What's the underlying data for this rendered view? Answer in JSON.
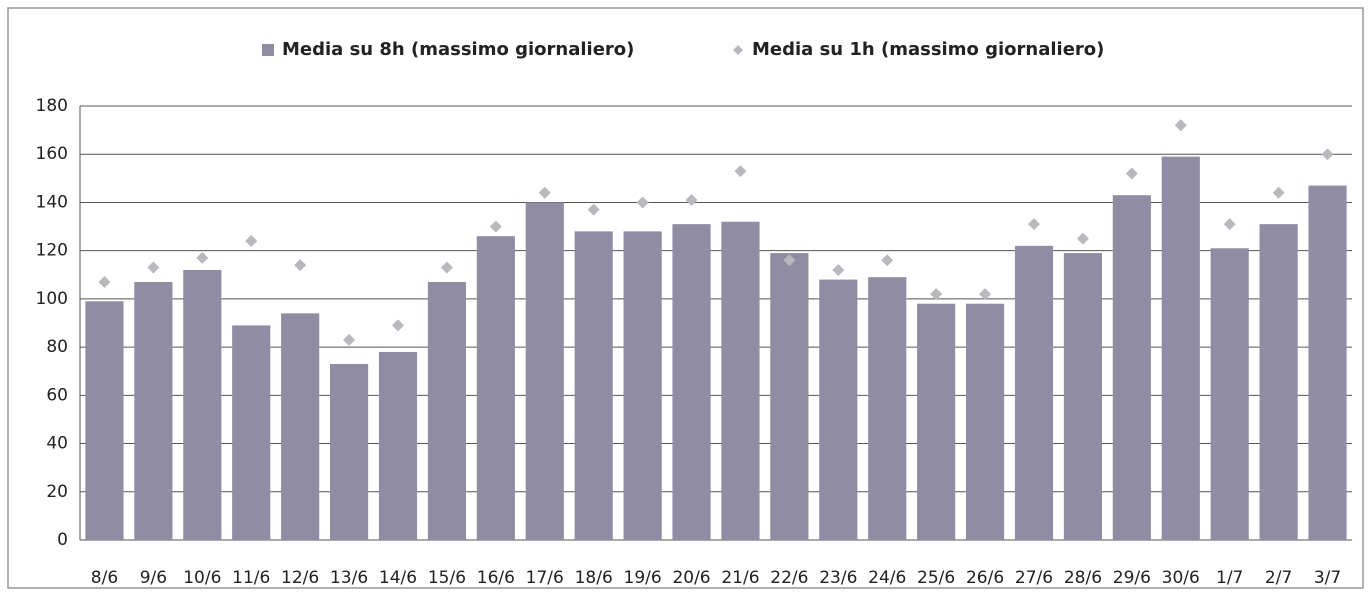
{
  "chart_data": {
    "type": "bar",
    "categories": [
      "8/6",
      "9/6",
      "10/6",
      "11/6",
      "12/6",
      "13/6",
      "14/6",
      "15/6",
      "16/6",
      "17/6",
      "18/6",
      "19/6",
      "20/6",
      "21/6",
      "22/6",
      "23/6",
      "24/6",
      "25/6",
      "26/6",
      "27/6",
      "28/6",
      "29/6",
      "30/6",
      "1/7",
      "2/7",
      "3/7"
    ],
    "series": [
      {
        "name": "Media su 8h (massimo giornaliero)",
        "type": "bar",
        "color": "#8f8ca3",
        "values": [
          99,
          107,
          112,
          89,
          94,
          73,
          78,
          107,
          126,
          140,
          128,
          128,
          131,
          132,
          119,
          108,
          109,
          98,
          98,
          122,
          119,
          143,
          159,
          121,
          131,
          147
        ]
      },
      {
        "name": "Media su 1h (massimo giornaliero)",
        "type": "scatter",
        "color": "#b9b9bd",
        "values": [
          107,
          113,
          117,
          124,
          114,
          83,
          89,
          113,
          130,
          144,
          137,
          140,
          141,
          153,
          116,
          112,
          116,
          102,
          102,
          131,
          125,
          152,
          172,
          131,
          144,
          160
        ]
      }
    ],
    "ylim": [
      0,
      180
    ],
    "yticks": [
      0,
      20,
      40,
      60,
      80,
      100,
      120,
      140,
      160,
      180
    ],
    "grid": true,
    "legend": "top"
  }
}
